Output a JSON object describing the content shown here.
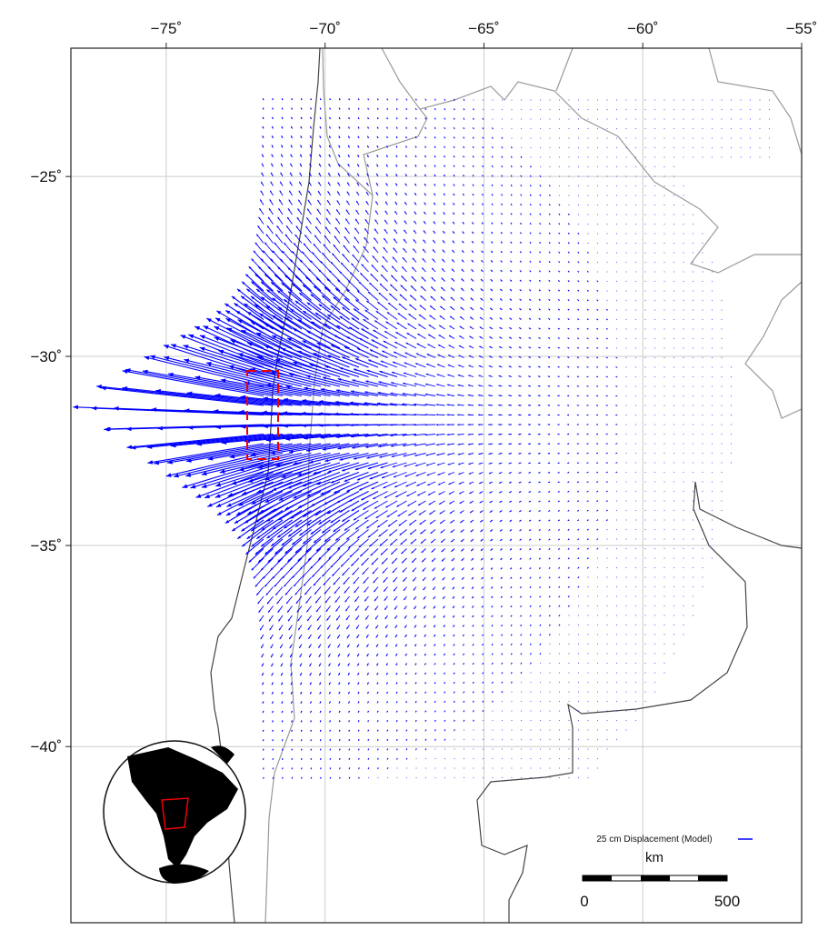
{
  "map": {
    "lonlim": [
      -78,
      -55
    ],
    "latlim": [
      -21.3,
      -44.1
    ],
    "xticks": [
      {
        "value": -75,
        "label": "−75˚"
      },
      {
        "value": -70,
        "label": "−70˚"
      },
      {
        "value": -65,
        "label": "−65˚"
      },
      {
        "value": -60,
        "label": "−60˚"
      },
      {
        "value": -55,
        "label": "−55˚"
      }
    ],
    "yticks": [
      {
        "value": -25,
        "label": "−25˚"
      },
      {
        "value": -30,
        "label": "−30˚"
      },
      {
        "value": -35,
        "label": "−35˚"
      },
      {
        "value": -40,
        "label": "−40˚"
      }
    ],
    "grid": true,
    "legend": {
      "label": "25 cm Displacement (Model)",
      "color": "#0000ff"
    },
    "scale_bar": {
      "unit": "km",
      "labels": [
        "0",
        "500"
      ]
    }
  }
}
